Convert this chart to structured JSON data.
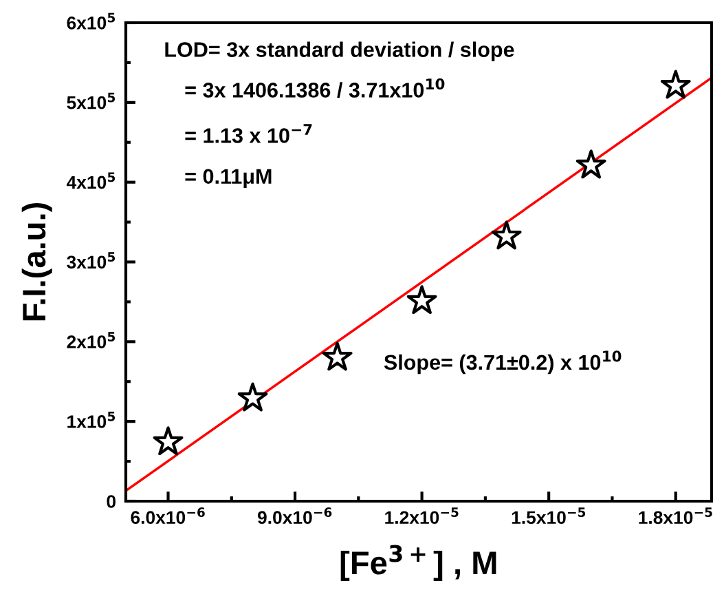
{
  "chart_data": {
    "type": "scatter",
    "xlabel": "[Fe$^{3+}$] , M",
    "ylabel": "F.I.(a.u.)",
    "marker": "star",
    "grid": false,
    "legend": false,
    "xlim": [
      5e-06,
      1.885e-05
    ],
    "ylim": [
      0,
      600000
    ],
    "xticks": [
      {
        "value": 6e-06,
        "label": "6.0x10$^{−6}$"
      },
      {
        "value": 9e-06,
        "label": "9.0x10$^{−6}$"
      },
      {
        "value": 1.2e-05,
        "label": "1.2x10$^{−5}$"
      },
      {
        "value": 1.5e-05,
        "label": "1.5x10$^{−5}$"
      },
      {
        "value": 1.8e-05,
        "label": "1.8x10$^{−5}$"
      }
    ],
    "yticks": [
      0,
      {
        "value": 100000,
        "label": "1x10$^{5}$"
      },
      {
        "value": 200000,
        "label": "2x10$^{5}$"
      },
      {
        "value": 300000,
        "label": "3x10$^{5}$"
      },
      {
        "value": 400000,
        "label": "4x10$^{5}$"
      },
      {
        "value": 500000,
        "label": "5x10$^{5}$"
      },
      {
        "value": 600000,
        "label": "6x10$^{5}$"
      }
    ],
    "series": [
      {
        "color": "#000000",
        "x": [
          6e-06,
          8e-06,
          1e-05,
          1.2e-05,
          1.4e-05,
          1.6e-05,
          1.8e-05
        ],
        "values": [
          74000,
          129000,
          180000,
          251000,
          332000,
          421000,
          521000
        ]
      },
      {
        "type": "line",
        "color": "#ff0000",
        "marker": "none",
        "line_style": "solid",
        "x": [
          5e-06,
          1.885e-05
        ],
        "values": [
          13000,
          531000
        ]
      }
    ],
    "annotations": [
      "LOD= 3x standard deviation / slope",
      "= 3x 1406.1386 / 3.71x10$^{10}$",
      "= 1.13 x 10$^{−7}$",
      "= 0.11μM",
      "Slope= (3.71±0.2) x 10$^{10}$"
    ]
  }
}
